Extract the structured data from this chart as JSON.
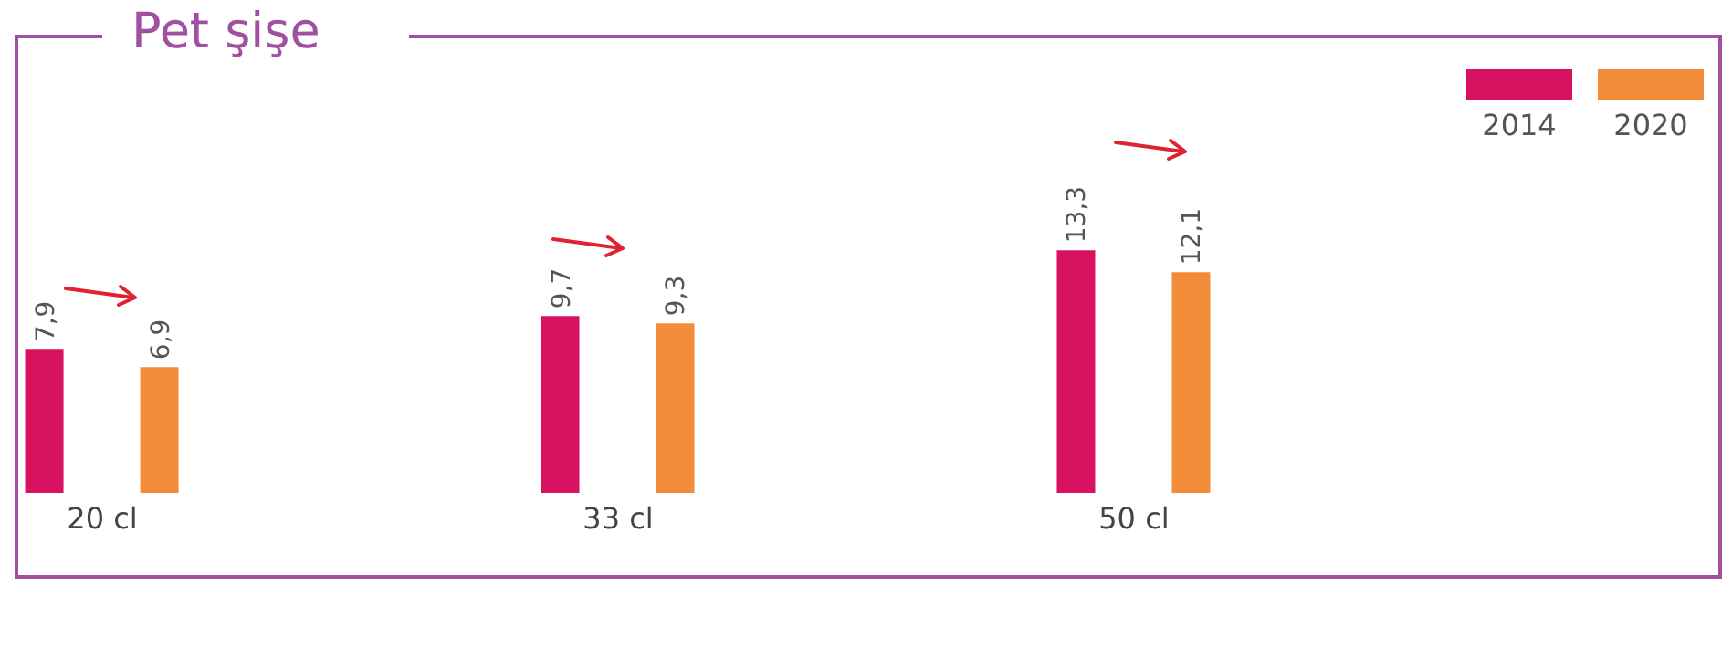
{
  "chart_data": {
    "type": "bar",
    "title": "Pet şişe",
    "categories": [
      "20 cl",
      "33 cl",
      "50 cl"
    ],
    "legend": "top right",
    "grid": false,
    "series": [
      {
        "name": "2014",
        "color": "#d81160",
        "values": [
          7.9,
          9.7,
          13.3
        ],
        "value_labels": [
          "7,9",
          "9,7",
          "13,3"
        ]
      },
      {
        "name": "2020",
        "color": "#f28c38",
        "values": [
          6.9,
          9.3,
          12.1
        ],
        "value_labels": [
          "6,9",
          "9,3",
          "12,1"
        ]
      }
    ]
  }
}
